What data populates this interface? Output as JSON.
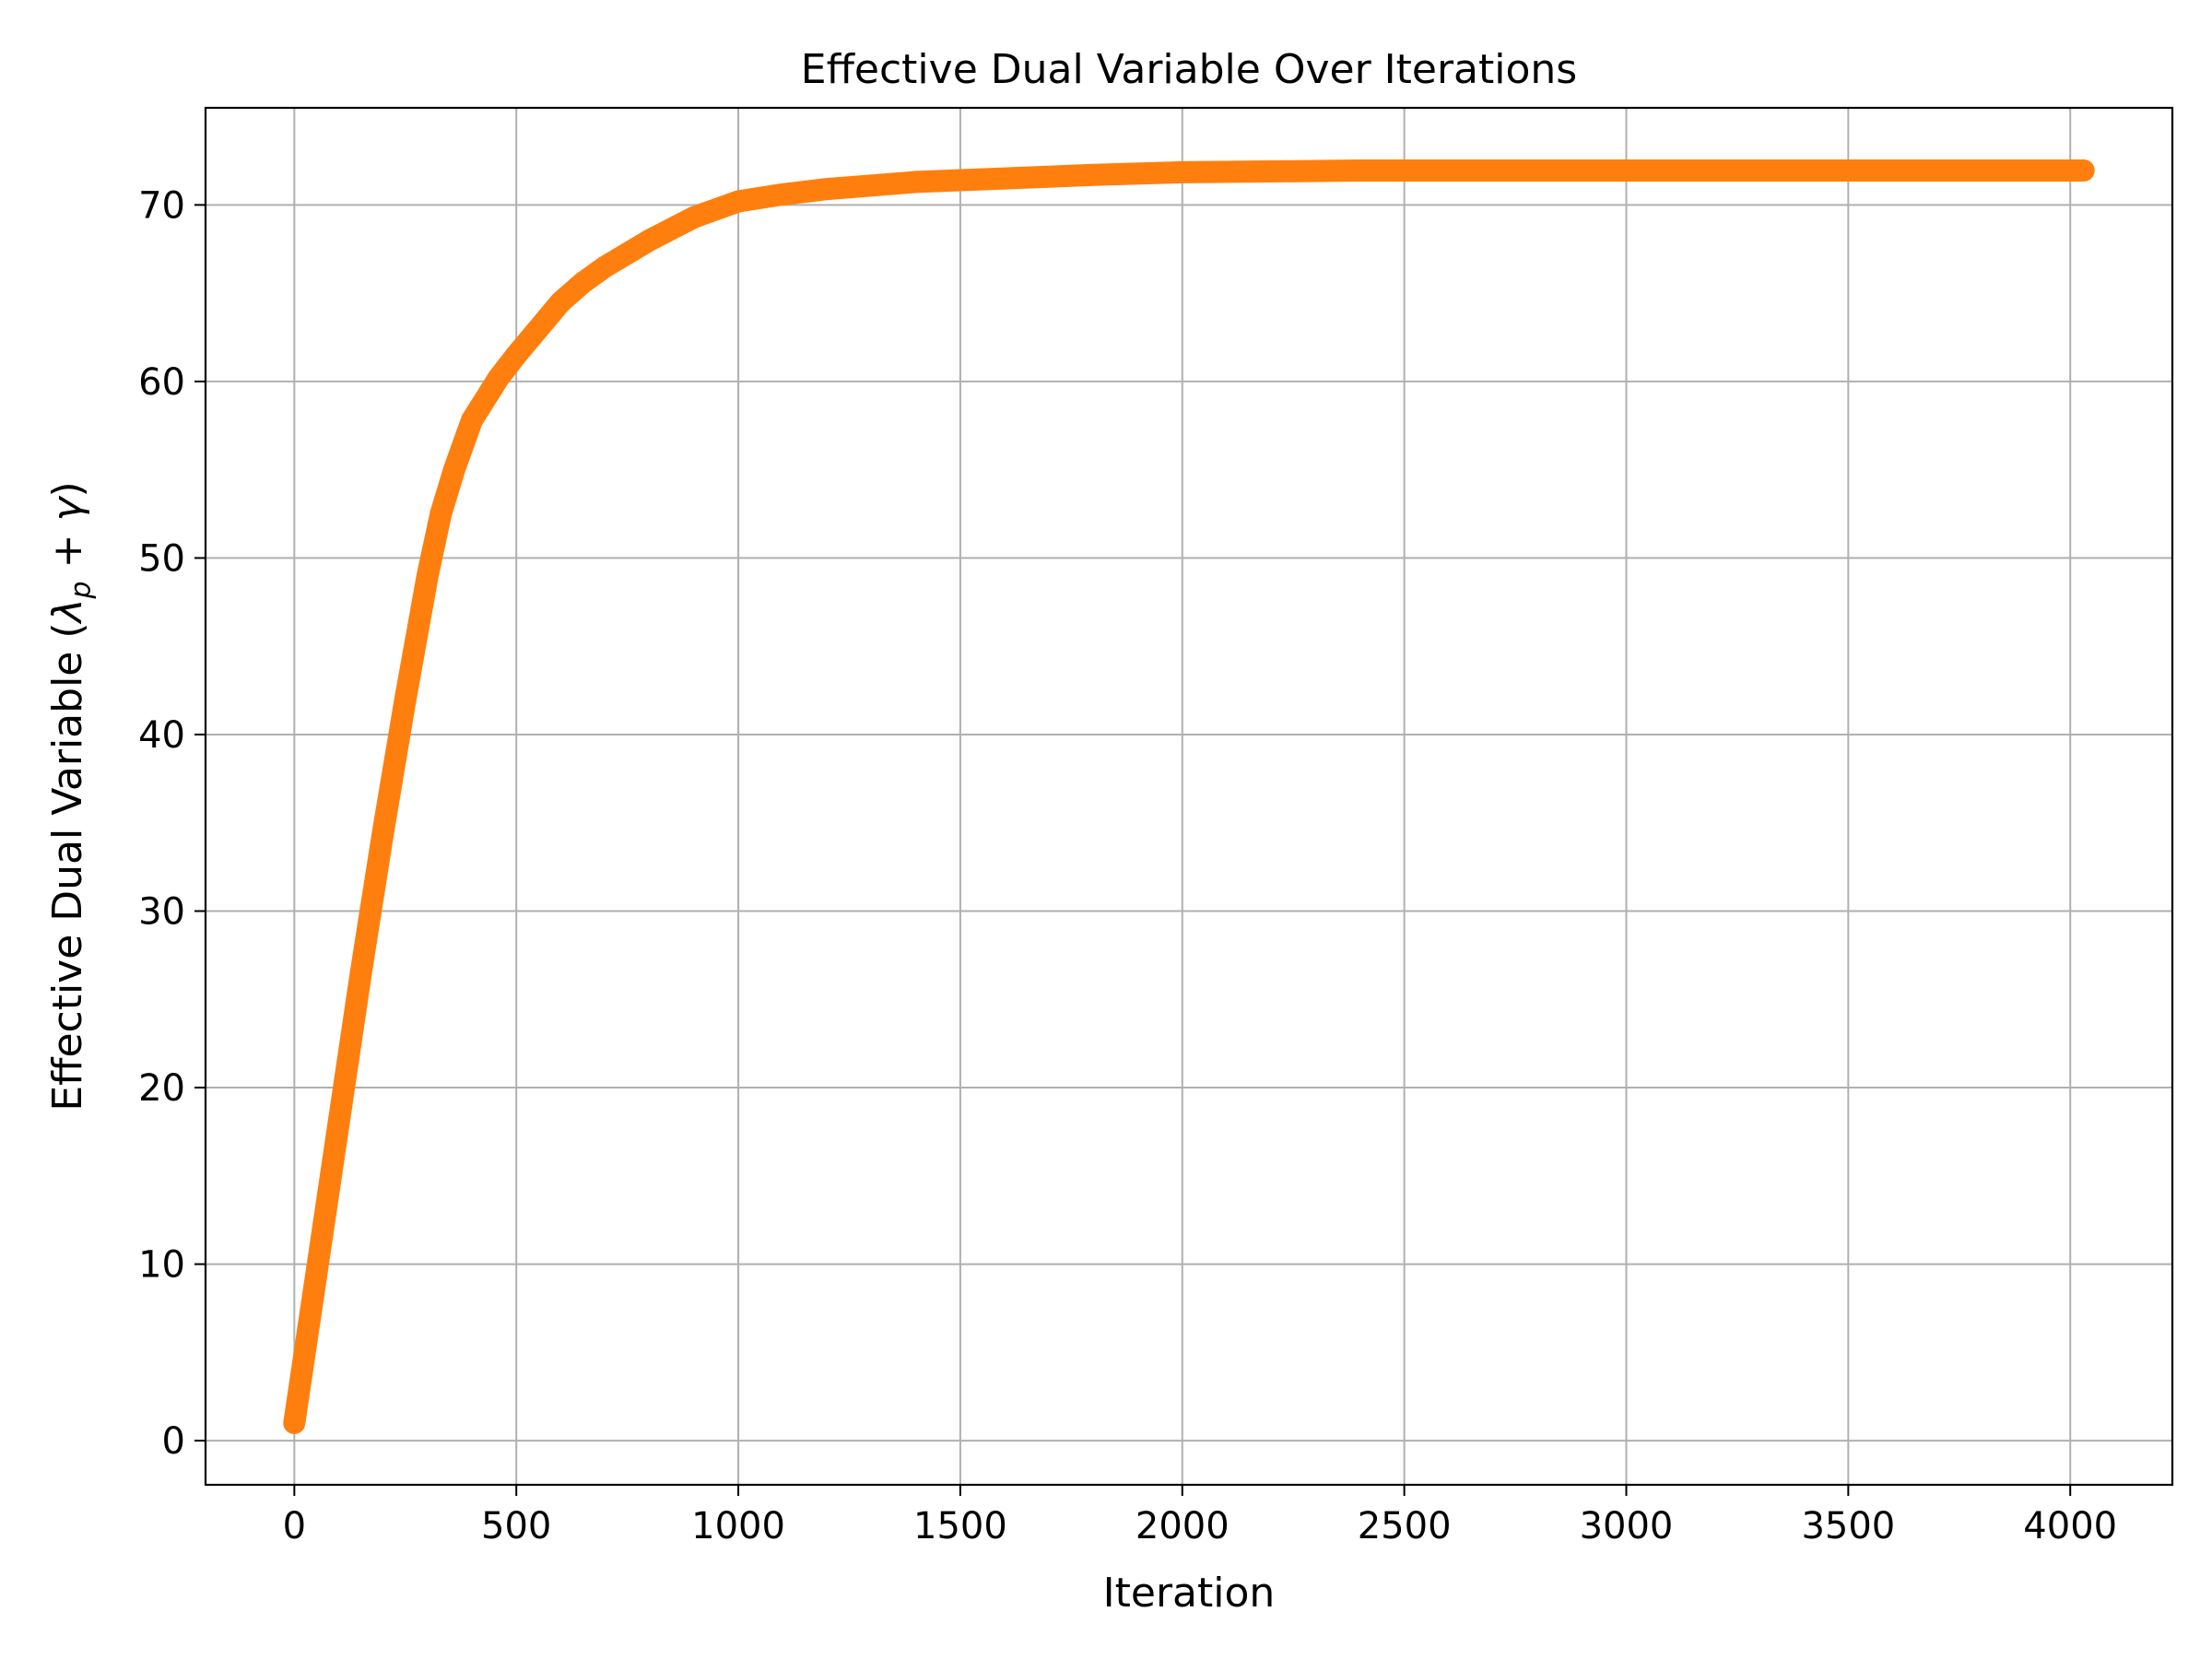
{
  "chart_data": {
    "type": "line",
    "title": "Effective Dual Variable Over Iterations",
    "xlabel": "Iteration",
    "ylabel": {
      "prefix": "Effective Dual Variable (",
      "lambda": "λ",
      "sub": "p",
      "plus": " + ",
      "gamma": "γ",
      "suffix": ")"
    },
    "xlim": [
      -200,
      4230
    ],
    "ylim": [
      -2.5,
      75.5
    ],
    "xticks": [
      0,
      500,
      1000,
      1500,
      2000,
      2500,
      3000,
      3500,
      4000
    ],
    "yticks": [
      0,
      10,
      20,
      30,
      40,
      50,
      60,
      70
    ],
    "grid": true,
    "series": [
      {
        "color": "#ff7f0e",
        "x": [
          0,
          50,
          100,
          150,
          200,
          250,
          300,
          330,
          360,
          400,
          430,
          460,
          500,
          550,
          600,
          650,
          700,
          800,
          900,
          1000,
          1100,
          1200,
          1300,
          1400,
          1500,
          1600,
          1800,
          2000,
          2200,
          2400,
          2600,
          2800,
          3000,
          3200,
          3400,
          3600,
          3800,
          4000,
          4030
        ],
        "y": [
          1,
          9.5,
          18,
          26.5,
          34.5,
          42,
          49,
          52.5,
          55,
          57.8,
          59,
          60.2,
          61.5,
          63,
          64.5,
          65.6,
          66.5,
          68,
          69.3,
          70.2,
          70.6,
          70.9,
          71.1,
          71.3,
          71.4,
          71.5,
          71.7,
          71.85,
          71.9,
          71.95,
          71.95,
          71.95,
          71.95,
          71.95,
          71.95,
          71.95,
          71.95,
          71.95,
          71.95
        ]
      }
    ]
  }
}
